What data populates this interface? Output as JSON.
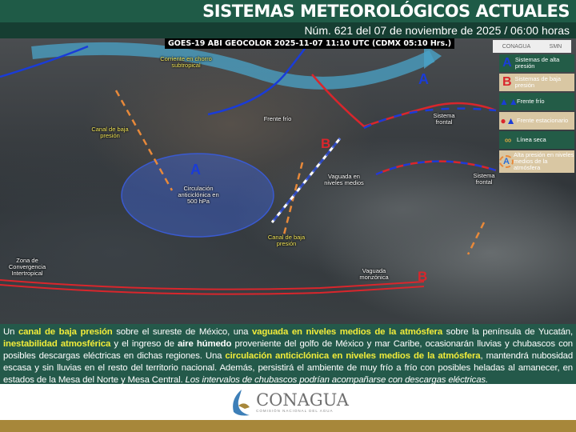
{
  "header": {
    "title": "SISTEMAS METEOROLÓGICOS ACTUALES",
    "subtitle": "Núm. 621 del 07 de noviembre de 2025 / 06:00 horas"
  },
  "map": {
    "satellite_caption": "GOES-19 ABI GEOCOLOR 2025-11-07 11:10 UTC (CDMX  05:10 Hrs.)",
    "logos": [
      "CONAGUA",
      "SMN"
    ],
    "legend": [
      {
        "icon": "A",
        "color": "#1a3cd8",
        "label": "Sistemas de alta presión"
      },
      {
        "icon": "B",
        "color": "#d9262c",
        "label": "Sistemas de baja presión"
      },
      {
        "icon": "cold-front-icon",
        "label": "Frente frío"
      },
      {
        "icon": "stationary-front-icon",
        "label": "Frente estacionario"
      },
      {
        "icon": "dry-line-icon",
        "label": "Línea seca"
      },
      {
        "icon": "A",
        "label": "Alta presión en niveles medios de la atmósfera"
      }
    ],
    "labels": {
      "jet": "Corriente en chorro subtropical",
      "canal1": "Canal de baja presión",
      "frente_frio": "Frente frío",
      "circ": "Circulación anticiclónica en 500 hPa",
      "vaguada": "Vaguada en niveles medios",
      "canal2": "Canal de baja presión",
      "frontal1": "Sistema frontal",
      "frontal2": "Sistema frontal",
      "zci": "Zona de Convergencia Intertropical",
      "monzonica": "Vaguada monzónica",
      "A1": "A",
      "A2": "A",
      "B1": "B",
      "B2": "B"
    },
    "colors": {
      "high": "#1a3cd8",
      "low": "#d9262c",
      "trough": "#e8893a"
    }
  },
  "description": {
    "p1": "Un ",
    "b1": "canal de baja presión",
    "p2": " sobre el sureste de México, una ",
    "b2": "vaguada en niveles medios de la atmósfera",
    "p3": " sobre la península de Yucatán, ",
    "b3": "inestabilidad atmosférica",
    "p4": " y el ingreso de ",
    "b4": "aire húmedo",
    "p5": " proveniente del golfo de México y mar Caribe, ocasionarán lluvias y chubascos con posibles descargas eléctricas en dichas regiones. Una ",
    "b5": "circulación anticiclónica en niveles medios de la atmósfera",
    "p6": ", mantendrá nubosidad escasa y sin lluvias en el resto del territorio nacional. Además, persistirá el ambiente de muy frío a frío con posibles heladas al amanecer, en estados de la Mesa del Norte y Mesa Central. ",
    "i1": "Los intervalos de chubascos podrían acompañarse con descargas eléctricas."
  },
  "footer": {
    "logo_name": "CONAGUA",
    "logo_sub": "COMISIÓN NACIONAL DEL AGUA"
  }
}
